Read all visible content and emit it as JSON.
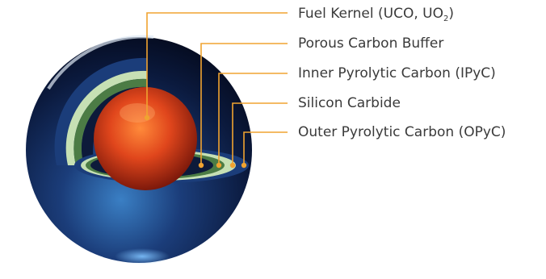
{
  "labels": {
    "fuel_kernel": {
      "text": "Fuel Kernel (UCO, UO",
      "subscript": "2",
      "suffix": ")"
    },
    "buffer": "Porous Carbon Buffer",
    "ipyc": "Inner Pyrolytic Carbon (IPyC)",
    "sic": "Silicon Carbide",
    "opyc": "Outer Pyrolytic Carbon (OPyC)"
  },
  "colors": {
    "leader_line": "#f0a330",
    "kernel": "#d8391a",
    "buffer_layer": "#0d1a3a",
    "ipyc_layer": "#4c7c45",
    "sic_layer": "#c6e0b4",
    "opyc_layer": "#1b3d7a",
    "label_text": "#3a3a3a"
  }
}
